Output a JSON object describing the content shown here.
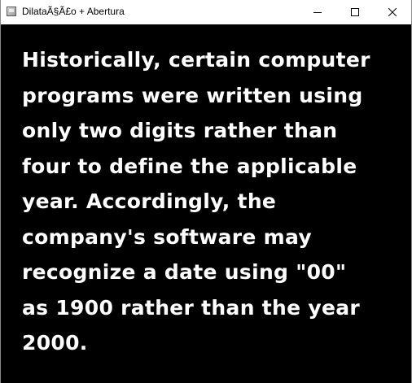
{
  "window": {
    "title": "DilataÃ§Ã£o + Abertura",
    "icons": {
      "app": "window-app-icon",
      "minimize": "minimize-icon",
      "maximize": "maximize-icon",
      "close": "close-icon"
    }
  },
  "content": {
    "background": "#000000",
    "text_color": "#ffffff",
    "lines": [
      "Historically, certain computer",
      "programs were written using",
      "only two digits rather than",
      "four to define the applicable",
      "year. Accordingly, the",
      "company's software may",
      "recognize a date using \"00\"",
      "as 1900 rather than the year",
      "2000."
    ]
  }
}
